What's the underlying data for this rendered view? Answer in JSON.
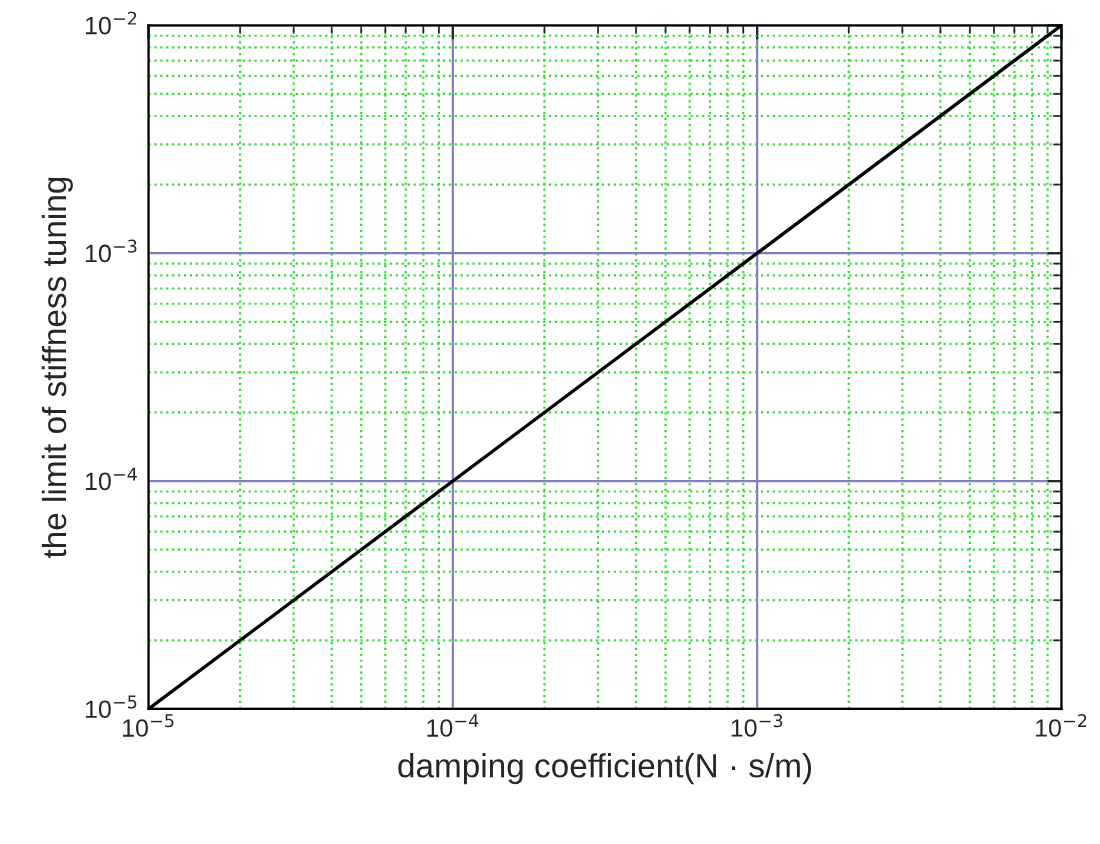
{
  "chart_data": {
    "type": "line",
    "xlabel": "damping coefficient(N · s/m)",
    "ylabel": "the limit of stiffness tuning",
    "x": [
      1e-05,
      0.01
    ],
    "series": [
      {
        "color": "#000000",
        "values": [
          1e-05,
          0.01
        ]
      }
    ],
    "log": "xy",
    "xlim": [
      1e-05,
      0.01
    ],
    "ylim": [
      1e-05,
      0.01
    ],
    "xticks": [
      {
        "value": 1e-05,
        "label": "10$^{−5}$"
      },
      {
        "value": 2e-05,
        "label": null
      },
      {
        "value": 3e-05,
        "label": null
      },
      {
        "value": 4e-05,
        "label": null
      },
      {
        "value": 5e-05,
        "label": null
      },
      {
        "value": 6e-05,
        "label": null
      },
      {
        "value": 7e-05,
        "label": null
      },
      {
        "value": 8e-05,
        "label": null
      },
      {
        "value": 9e-05,
        "label": null
      },
      {
        "value": 0.0001,
        "label": "10$^{−4}$"
      },
      {
        "value": 0.0002,
        "label": null
      },
      {
        "value": 0.0003,
        "label": null
      },
      {
        "value": 0.0004,
        "label": null
      },
      {
        "value": 0.0005,
        "label": null
      },
      {
        "value": 0.0006,
        "label": null
      },
      {
        "value": 0.0007,
        "label": null
      },
      {
        "value": 0.0008,
        "label": null
      },
      {
        "value": 0.0009,
        "label": null
      },
      {
        "value": 0.001,
        "label": "10$^{−3}$"
      },
      {
        "value": 0.002,
        "label": null
      },
      {
        "value": 0.003,
        "label": null
      },
      {
        "value": 0.004,
        "label": null
      },
      {
        "value": 0.005,
        "label": null
      },
      {
        "value": 0.006,
        "label": null
      },
      {
        "value": 0.007,
        "label": null
      },
      {
        "value": 0.008,
        "label": null
      },
      {
        "value": 0.009,
        "label": null
      },
      {
        "value": 0.01,
        "label": "10$^{−2}$"
      }
    ],
    "yticks": [
      {
        "value": 1e-05,
        "label": "10$^{−5}$"
      },
      {
        "value": 2e-05,
        "label": null
      },
      {
        "value": 3e-05,
        "label": null
      },
      {
        "value": 4e-05,
        "label": null
      },
      {
        "value": 5e-05,
        "label": null
      },
      {
        "value": 6e-05,
        "label": null
      },
      {
        "value": 7e-05,
        "label": null
      },
      {
        "value": 8e-05,
        "label": null
      },
      {
        "value": 9e-05,
        "label": null
      },
      {
        "value": 0.0001,
        "label": "10$^{−4}$"
      },
      {
        "value": 0.0002,
        "label": null
      },
      {
        "value": 0.0003,
        "label": null
      },
      {
        "value": 0.0004,
        "label": null
      },
      {
        "value": 0.0005,
        "label": null
      },
      {
        "value": 0.0006,
        "label": null
      },
      {
        "value": 0.0007,
        "label": null
      },
      {
        "value": 0.0008,
        "label": null
      },
      {
        "value": 0.0009,
        "label": null
      },
      {
        "value": 0.001,
        "label": "10$^{−3}$"
      },
      {
        "value": 0.002,
        "label": null
      },
      {
        "value": 0.003,
        "label": null
      },
      {
        "value": 0.004,
        "label": null
      },
      {
        "value": 0.005,
        "label": null
      },
      {
        "value": 0.006,
        "label": null
      },
      {
        "value": 0.007,
        "label": null
      },
      {
        "value": 0.008,
        "label": null
      },
      {
        "value": 0.009,
        "label": null
      },
      {
        "value": 0.01,
        "label": "10$^{−2}$"
      }
    ],
    "grid": true,
    "legend": false,
    "marker": "none",
    "line_style": "solid"
  }
}
